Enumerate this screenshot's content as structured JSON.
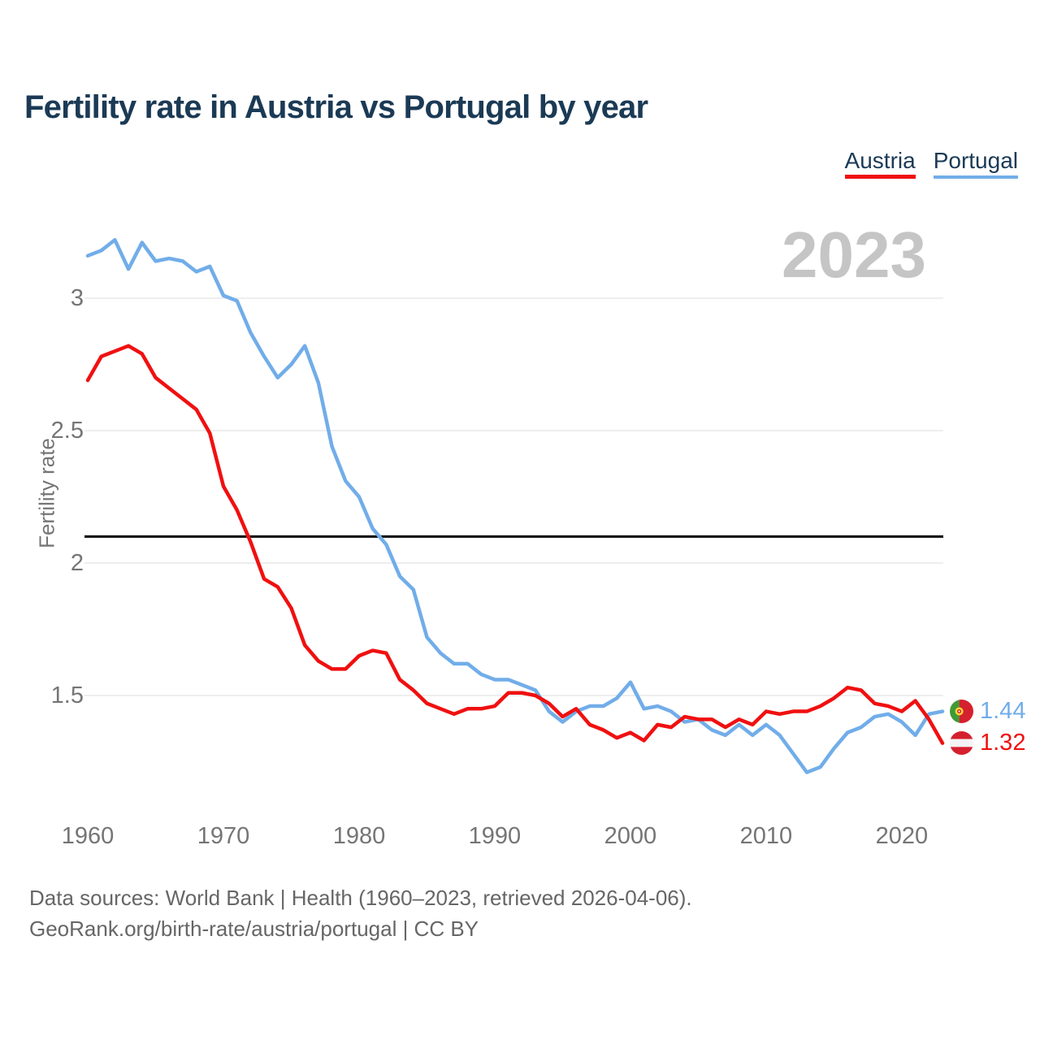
{
  "header": {
    "title": "Fertility rate in Austria vs Portugal by year"
  },
  "legend": {
    "items": [
      {
        "label": "Austria",
        "color": "#f01010"
      },
      {
        "label": "Portugal",
        "color": "#71ade9"
      }
    ]
  },
  "watermark": "2023",
  "chart_data": {
    "type": "line",
    "title": "Fertility rate in Austria vs Portugal by year",
    "xlabel": "",
    "ylabel": "Fertility rate",
    "x_range": [
      1960,
      2023
    ],
    "ylim": [
      1.1,
      3.35
    ],
    "grid": "horizontal",
    "legend_position": "top-right",
    "watermark": "2023",
    "years": [
      1960,
      1961,
      1962,
      1963,
      1964,
      1965,
      1966,
      1967,
      1968,
      1969,
      1970,
      1971,
      1972,
      1973,
      1974,
      1975,
      1976,
      1977,
      1978,
      1979,
      1980,
      1981,
      1982,
      1983,
      1984,
      1985,
      1986,
      1987,
      1988,
      1989,
      1990,
      1991,
      1992,
      1993,
      1994,
      1995,
      1996,
      1997,
      1998,
      1999,
      2000,
      2001,
      2002,
      2003,
      2004,
      2005,
      2006,
      2007,
      2008,
      2009,
      2010,
      2011,
      2012,
      2013,
      2014,
      2015,
      2016,
      2017,
      2018,
      2019,
      2020,
      2021,
      2022,
      2023
    ],
    "series": [
      {
        "name": "Portugal",
        "color": "#71ade9",
        "values": [
          3.16,
          3.18,
          3.22,
          3.11,
          3.21,
          3.14,
          3.15,
          3.14,
          3.1,
          3.12,
          3.01,
          2.99,
          2.87,
          2.78,
          2.7,
          2.75,
          2.82,
          2.68,
          2.44,
          2.31,
          2.25,
          2.13,
          2.07,
          1.95,
          1.9,
          1.72,
          1.66,
          1.62,
          1.62,
          1.58,
          1.56,
          1.56,
          1.54,
          1.52,
          1.44,
          1.4,
          1.44,
          1.46,
          1.46,
          1.49,
          1.55,
          1.45,
          1.46,
          1.44,
          1.4,
          1.41,
          1.37,
          1.35,
          1.39,
          1.35,
          1.39,
          1.35,
          1.28,
          1.21,
          1.23,
          1.3,
          1.36,
          1.38,
          1.42,
          1.43,
          1.4,
          1.35,
          1.43,
          1.44
        ]
      },
      {
        "name": "Austria",
        "color": "#f01010",
        "values": [
          2.69,
          2.78,
          2.8,
          2.82,
          2.79,
          2.7,
          2.66,
          2.62,
          2.58,
          2.49,
          2.29,
          2.2,
          2.08,
          1.94,
          1.91,
          1.83,
          1.69,
          1.63,
          1.6,
          1.6,
          1.65,
          1.67,
          1.66,
          1.56,
          1.52,
          1.47,
          1.45,
          1.43,
          1.45,
          1.45,
          1.46,
          1.51,
          1.51,
          1.5,
          1.47,
          1.42,
          1.45,
          1.39,
          1.37,
          1.34,
          1.36,
          1.33,
          1.39,
          1.38,
          1.42,
          1.41,
          1.41,
          1.38,
          1.41,
          1.39,
          1.44,
          1.43,
          1.44,
          1.44,
          1.46,
          1.49,
          1.53,
          1.52,
          1.47,
          1.46,
          1.44,
          1.48,
          1.41,
          1.32
        ]
      }
    ],
    "y_ticks": [
      {
        "value": 3,
        "label": "3"
      },
      {
        "value": 2.5,
        "label": "2.5"
      },
      {
        "value": 2,
        "label": "2"
      },
      {
        "value": 1.5,
        "label": "1.5"
      }
    ],
    "x_ticks": [
      {
        "value": 1960,
        "label": "1960"
      },
      {
        "value": 1970,
        "label": "1970"
      },
      {
        "value": 1980,
        "label": "1980"
      },
      {
        "value": 1990,
        "label": "1990"
      },
      {
        "value": 2000,
        "label": "2000"
      },
      {
        "value": 2010,
        "label": "2010"
      },
      {
        "value": 2020,
        "label": "2020"
      }
    ],
    "reference_line": {
      "value": 2.1,
      "color": "#000000"
    },
    "end_labels": [
      {
        "series": "Portugal",
        "value": "1.44"
      },
      {
        "series": "Austria",
        "value": "1.32"
      }
    ]
  },
  "footer": {
    "line1": "Data sources: World Bank | Health (1960–2023, retrieved 2026-04-06).",
    "line2": "GeoRank.org/birth-rate/austria/portugal | CC BY"
  }
}
